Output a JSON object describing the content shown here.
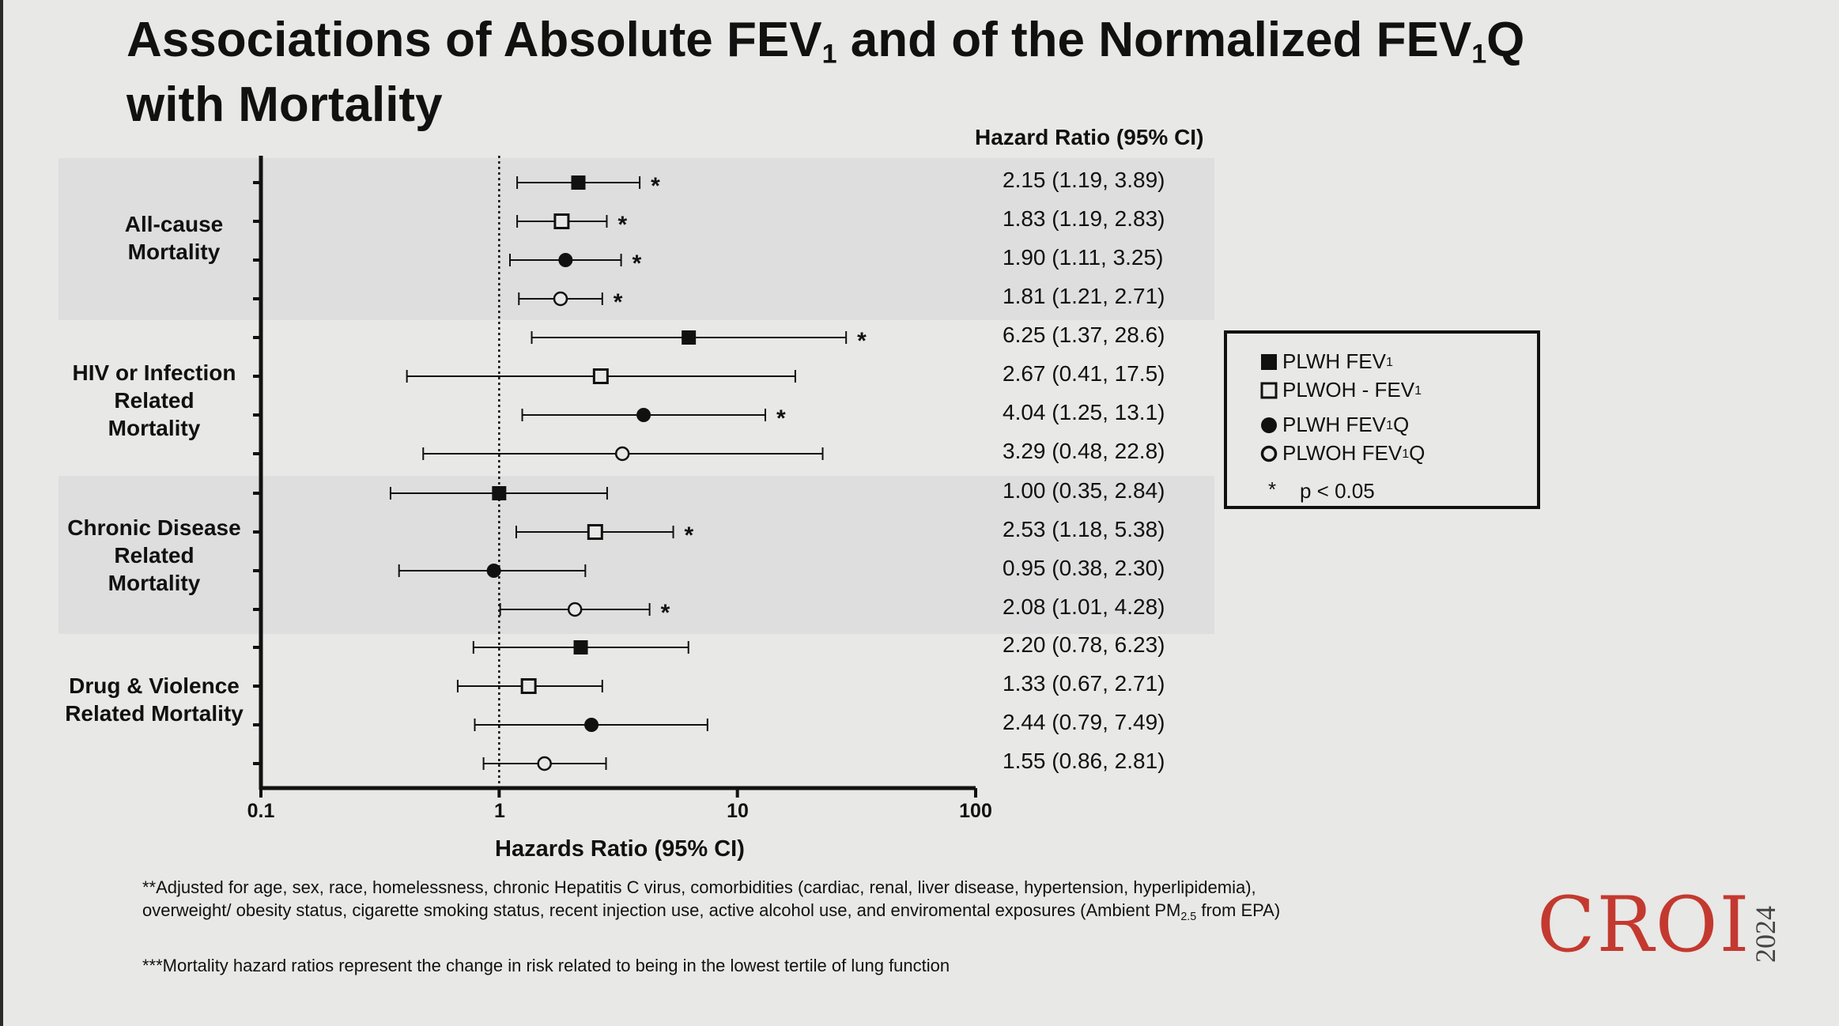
{
  "slide": {
    "title_line1_a": "Associations of Absolute FEV",
    "title_sub1": "1",
    "title_line1_b": " and of the Normalized FEV",
    "title_sub2": "1",
    "title_line1_c": "Q",
    "title_line2": "with Mortality"
  },
  "colors": {
    "background": "#e8e8e6",
    "band": "#dedede",
    "ink": "#111111",
    "logo": "#c4392f"
  },
  "chart_data": {
    "type": "forest",
    "xlabel": "Hazards Ratio (95% CI)",
    "x_scale": "log",
    "xlim": [
      0.1,
      100
    ],
    "x_ticks": [
      "0.1",
      "1",
      "10",
      "100"
    ],
    "reference_line": 1,
    "hr_header": "Hazard Ratio (95% CI)",
    "groups": [
      {
        "label": [
          "All-cause",
          "Mortality"
        ],
        "rows": [
          {
            "series": "PLWH FEV1",
            "marker": "filled-square",
            "hr": 2.15,
            "lo": 1.19,
            "hi": 3.89,
            "sig": true,
            "text": "2.15 (1.19, 3.89)"
          },
          {
            "series": "PLWOH - FEV1",
            "marker": "open-square",
            "hr": 1.83,
            "lo": 1.19,
            "hi": 2.83,
            "sig": true,
            "text": "1.83 (1.19, 2.83)"
          },
          {
            "series": "PLWH FEV1Q",
            "marker": "filled-circle",
            "hr": 1.9,
            "lo": 1.11,
            "hi": 3.25,
            "sig": true,
            "text": "1.90 (1.11, 3.25)"
          },
          {
            "series": "PLWOH FEV1Q",
            "marker": "open-circle",
            "hr": 1.81,
            "lo": 1.21,
            "hi": 2.71,
            "sig": true,
            "text": "1.81 (1.21, 2.71)"
          }
        ]
      },
      {
        "label": [
          "HIV or Infection",
          "Related",
          "Mortality"
        ],
        "rows": [
          {
            "series": "PLWH FEV1",
            "marker": "filled-square",
            "hr": 6.25,
            "lo": 1.37,
            "hi": 28.6,
            "sig": true,
            "text": "6.25 (1.37, 28.6)"
          },
          {
            "series": "PLWOH - FEV1",
            "marker": "open-square",
            "hr": 2.67,
            "lo": 0.41,
            "hi": 17.5,
            "sig": false,
            "text": "2.67 (0.41, 17.5)"
          },
          {
            "series": "PLWH FEV1Q",
            "marker": "filled-circle",
            "hr": 4.04,
            "lo": 1.25,
            "hi": 13.1,
            "sig": true,
            "text": "4.04 (1.25, 13.1)"
          },
          {
            "series": "PLWOH FEV1Q",
            "marker": "open-circle",
            "hr": 3.29,
            "lo": 0.48,
            "hi": 22.8,
            "sig": false,
            "text": "3.29 (0.48, 22.8)"
          }
        ]
      },
      {
        "label": [
          "Chronic Disease",
          "Related",
          "Mortality"
        ],
        "rows": [
          {
            "series": "PLWH FEV1",
            "marker": "filled-square",
            "hr": 1.0,
            "lo": 0.35,
            "hi": 2.84,
            "sig": false,
            "text": "1.00 (0.35, 2.84)"
          },
          {
            "series": "PLWOH - FEV1",
            "marker": "open-square",
            "hr": 2.53,
            "lo": 1.18,
            "hi": 5.38,
            "sig": true,
            "text": "2.53 (1.18, 5.38)"
          },
          {
            "series": "PLWH FEV1Q",
            "marker": "filled-circle",
            "hr": 0.95,
            "lo": 0.38,
            "hi": 2.3,
            "sig": false,
            "text": "0.95 (0.38, 2.30)"
          },
          {
            "series": "PLWOH FEV1Q",
            "marker": "open-circle",
            "hr": 2.08,
            "lo": 1.01,
            "hi": 4.28,
            "sig": true,
            "text": "2.08 (1.01, 4.28)"
          }
        ]
      },
      {
        "label": [
          "Drug & Violence",
          "Related Mortality"
        ],
        "rows": [
          {
            "series": "PLWH FEV1",
            "marker": "filled-square",
            "hr": 2.2,
            "lo": 0.78,
            "hi": 6.23,
            "sig": false,
            "text": "2.20 (0.78, 6.23)"
          },
          {
            "series": "PLWOH - FEV1",
            "marker": "open-square",
            "hr": 1.33,
            "lo": 0.67,
            "hi": 2.71,
            "sig": false,
            "text": "1.33 (0.67, 2.71)"
          },
          {
            "series": "PLWH FEV1Q",
            "marker": "filled-circle",
            "hr": 2.44,
            "lo": 0.79,
            "hi": 7.49,
            "sig": false,
            "text": "2.44 (0.79, 7.49)"
          },
          {
            "series": "PLWOH FEV1Q",
            "marker": "open-circle",
            "hr": 1.55,
            "lo": 0.86,
            "hi": 2.81,
            "sig": false,
            "text": "1.55 (0.86, 2.81)"
          }
        ]
      }
    ],
    "legend": {
      "placement": "right",
      "items": [
        {
          "marker": "filled-square",
          "text": "PLWH FEV",
          "sub": "1",
          "suffix": ""
        },
        {
          "marker": "open-square",
          "text": "PLWOH - FEV",
          "sub": "1",
          "suffix": ""
        },
        {
          "marker": "filled-circle",
          "text": "PLWH FEV",
          "sub": "1",
          "suffix": "Q"
        },
        {
          "marker": "open-circle",
          "text": "PLWOH FEV",
          "sub": "1",
          "suffix": "Q"
        }
      ],
      "sig_symbol": "*",
      "sig_text": "p < 0.05"
    }
  },
  "footnotes": {
    "note1_a": "**Adjusted for age, sex, race, homelessness, chronic Hepatitis C virus, comorbidities (cardiac, renal, liver disease, hypertension, hyperlipidemia), overweight/ obesity status, cigarette smoking status, recent injection use, active alcohol use, and enviromental exposures (Ambient PM",
    "note1_sub": "2.5",
    "note1_b": " from EPA)",
    "note2": "***Mortality hazard ratios represent the change in risk related to being in the lowest tertile of lung function"
  },
  "logo": {
    "text": "CROI",
    "year": "2024"
  }
}
